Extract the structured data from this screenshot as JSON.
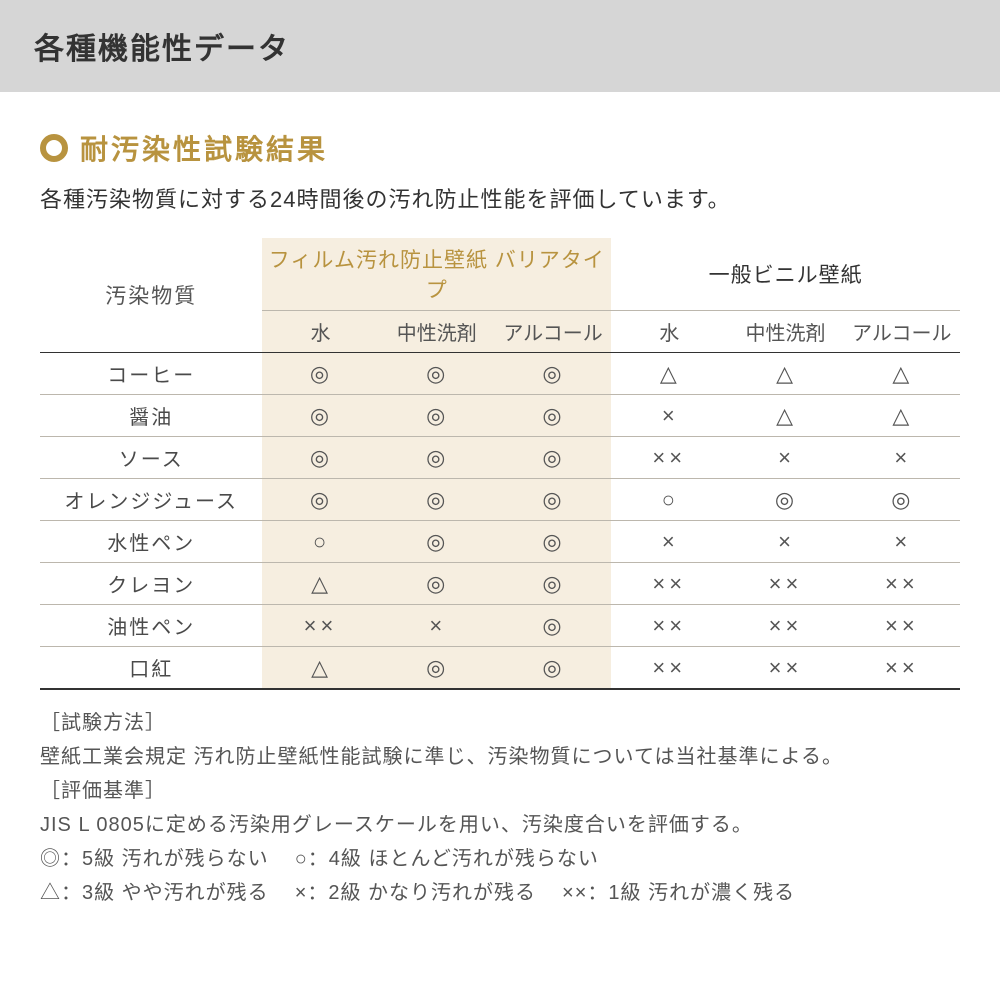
{
  "colors": {
    "banner_bg": "#d6d6d6",
    "accent": "#b8933f",
    "highlight_bg": "#f6eee0",
    "text": "#3a3a3a",
    "rule": "#bcb7ad",
    "rule_dark": "#323232"
  },
  "banner": {
    "title": "各種機能性データ"
  },
  "section": {
    "title": "耐汚染性試験結果",
    "intro": "各種汚染物質に対する24時間後の汚れ防止性能を評価しています。"
  },
  "table": {
    "stain_header": "汚染物質",
    "group_film": "フィルム汚れ防止壁紙 バリアタイプ",
    "group_vinyl": "一般ビニル壁紙",
    "methods": [
      "水",
      "中性洗剤",
      "アルコール"
    ],
    "rows": [
      {
        "label": "コーヒー",
        "film": [
          "◎",
          "◎",
          "◎"
        ],
        "vinyl": [
          "△",
          "△",
          "△"
        ]
      },
      {
        "label": "醤油",
        "film": [
          "◎",
          "◎",
          "◎"
        ],
        "vinyl": [
          "×",
          "△",
          "△"
        ]
      },
      {
        "label": "ソース",
        "film": [
          "◎",
          "◎",
          "◎"
        ],
        "vinyl": [
          "××",
          "×",
          "×"
        ]
      },
      {
        "label": "オレンジジュース",
        "film": [
          "◎",
          "◎",
          "◎"
        ],
        "vinyl": [
          "○",
          "◎",
          "◎"
        ]
      },
      {
        "label": "水性ペン",
        "film": [
          "○",
          "◎",
          "◎"
        ],
        "vinyl": [
          "×",
          "×",
          "×"
        ]
      },
      {
        "label": "クレヨン",
        "film": [
          "△",
          "◎",
          "◎"
        ],
        "vinyl": [
          "××",
          "××",
          "××"
        ]
      },
      {
        "label": "油性ペン",
        "film": [
          "××",
          "×",
          "◎"
        ],
        "vinyl": [
          "××",
          "××",
          "××"
        ]
      },
      {
        "label": "口紅",
        "film": [
          "△",
          "◎",
          "◎"
        ],
        "vinyl": [
          "××",
          "××",
          "××"
        ]
      }
    ]
  },
  "notes": {
    "method_label": "［試験方法］",
    "method_text": "壁紙工業会規定 汚れ防止壁紙性能試験に準じ、汚染物質については当社基準による。",
    "criteria_label": "［評価基準］",
    "criteria_text": "JIS L 0805に定める汚染用グレースケールを用い、汚染度合いを評価する。",
    "legend": [
      "◎：5級 汚れが残らない",
      "○：4級 ほとんど汚れが残らない",
      "△：3級 やや汚れが残る",
      "×：2級 かなり汚れが残る",
      "××：1級 汚れが濃く残る"
    ]
  }
}
